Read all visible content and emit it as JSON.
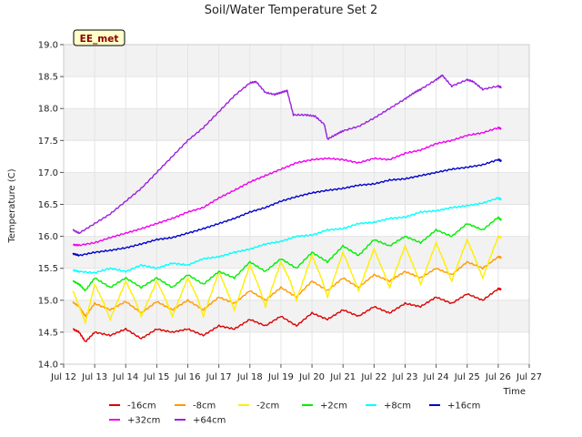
{
  "chart_data": {
    "type": "line",
    "title": "Soil/Water Temperature Set 2",
    "xlabel": "Time",
    "ylabel": "Temperature (C)",
    "badge": "EE_met",
    "xlim": [
      12,
      27
    ],
    "ylim": [
      14.0,
      19.0
    ],
    "x_tick_values": [
      12,
      13,
      14,
      15,
      16,
      17,
      18,
      19,
      20,
      21,
      22,
      23,
      24,
      25,
      26,
      27
    ],
    "x_tick_labels": [
      "Jul 12",
      "Jul 13",
      "Jul 14",
      "Jul 15",
      "Jul 16",
      "Jul 17",
      "Jul 18",
      "Jul 19",
      "Jul 20",
      "Jul 21",
      "Jul 22",
      "Jul 23",
      "Jul 24",
      "Jul 25",
      "Jul 26",
      "Jul 27"
    ],
    "y_tick_values": [
      14.0,
      14.5,
      15.0,
      15.5,
      16.0,
      16.5,
      17.0,
      17.5,
      18.0,
      18.5,
      19.0
    ],
    "y_tick_labels": [
      "14.0",
      "14.5",
      "15.0",
      "15.5",
      "16.0",
      "16.5",
      "17.0",
      "17.5",
      "18.0",
      "18.5",
      "19.0"
    ],
    "grid": true,
    "legend_position": "bottom",
    "series": [
      {
        "name": "-16cm",
        "color": "#dd0000",
        "x": [
          12.3,
          12.5,
          12.7,
          13.0,
          13.5,
          14.0,
          14.5,
          15.0,
          15.5,
          16.0,
          16.5,
          17.0,
          17.5,
          18.0,
          18.5,
          19.0,
          19.5,
          20.0,
          20.5,
          21.0,
          21.5,
          22.0,
          22.5,
          23.0,
          23.5,
          24.0,
          24.5,
          25.0,
          25.5,
          26.0,
          26.1
        ],
        "y": [
          14.55,
          14.5,
          14.35,
          14.5,
          14.45,
          14.55,
          14.4,
          14.55,
          14.5,
          14.55,
          14.45,
          14.6,
          14.55,
          14.7,
          14.6,
          14.75,
          14.6,
          14.8,
          14.7,
          14.85,
          14.75,
          14.9,
          14.8,
          14.95,
          14.9,
          15.05,
          14.95,
          15.1,
          15.0,
          15.18,
          15.17
        ]
      },
      {
        "name": "-8cm",
        "color": "#ff9900",
        "x": [
          12.3,
          12.5,
          12.7,
          13.0,
          13.5,
          14.0,
          14.5,
          15.0,
          15.5,
          16.0,
          16.5,
          17.0,
          17.5,
          18.0,
          18.5,
          19.0,
          19.5,
          20.0,
          20.5,
          21.0,
          21.5,
          22.0,
          22.5,
          23.0,
          23.5,
          24.0,
          24.5,
          25.0,
          25.5,
          26.0,
          26.1
        ],
        "y": [
          14.97,
          14.9,
          14.75,
          14.95,
          14.85,
          14.98,
          14.8,
          14.98,
          14.85,
          15.0,
          14.85,
          15.05,
          14.95,
          15.15,
          15.0,
          15.2,
          15.05,
          15.3,
          15.15,
          15.35,
          15.2,
          15.4,
          15.3,
          15.45,
          15.35,
          15.5,
          15.4,
          15.6,
          15.5,
          15.68,
          15.67
        ]
      },
      {
        "name": "-2cm",
        "color": "#ffee00",
        "x": [
          12.3,
          12.5,
          12.7,
          13.0,
          13.3,
          13.5,
          14.0,
          14.3,
          14.5,
          15.0,
          15.3,
          15.5,
          16.0,
          16.3,
          16.5,
          17.0,
          17.3,
          17.5,
          18.0,
          18.3,
          18.5,
          19.0,
          19.3,
          19.5,
          20.0,
          20.3,
          20.5,
          21.0,
          21.3,
          21.5,
          22.0,
          22.3,
          22.5,
          23.0,
          23.3,
          23.5,
          24.0,
          24.3,
          24.5,
          25.0,
          25.3,
          25.5,
          26.0,
          26.1
        ],
        "y": [
          15.15,
          14.9,
          14.65,
          15.25,
          14.95,
          14.7,
          15.3,
          15.0,
          14.75,
          15.3,
          15.0,
          14.75,
          15.35,
          15.05,
          14.75,
          15.45,
          15.1,
          14.85,
          15.55,
          15.2,
          14.9,
          15.6,
          15.3,
          15.0,
          15.7,
          15.35,
          15.05,
          15.75,
          15.4,
          15.15,
          15.8,
          15.45,
          15.2,
          15.85,
          15.5,
          15.25,
          15.9,
          15.55,
          15.3,
          15.95,
          15.6,
          15.35,
          16.0,
          15.98
        ]
      },
      {
        "name": "+2cm",
        "color": "#00ee00",
        "x": [
          12.3,
          12.5,
          12.7,
          13.0,
          13.5,
          14.0,
          14.5,
          15.0,
          15.5,
          16.0,
          16.5,
          17.0,
          17.5,
          18.0,
          18.5,
          19.0,
          19.5,
          20.0,
          20.5,
          21.0,
          21.5,
          22.0,
          22.5,
          23.0,
          23.5,
          24.0,
          24.5,
          25.0,
          25.5,
          26.0,
          26.1
        ],
        "y": [
          15.3,
          15.25,
          15.15,
          15.35,
          15.2,
          15.35,
          15.2,
          15.35,
          15.2,
          15.4,
          15.25,
          15.45,
          15.35,
          15.6,
          15.45,
          15.65,
          15.5,
          15.75,
          15.6,
          15.85,
          15.7,
          15.95,
          15.85,
          16.0,
          15.9,
          16.1,
          16.0,
          16.2,
          16.1,
          16.3,
          16.25
        ]
      },
      {
        "name": "+8cm",
        "color": "#00ffff",
        "x": [
          12.3,
          12.5,
          13.0,
          13.5,
          14.0,
          14.5,
          15.0,
          15.5,
          16.0,
          16.5,
          17.0,
          17.5,
          18.0,
          18.5,
          19.0,
          19.5,
          20.0,
          20.5,
          21.0,
          21.5,
          22.0,
          22.5,
          23.0,
          23.5,
          24.0,
          24.5,
          25.0,
          25.5,
          26.0,
          26.1
        ],
        "y": [
          15.47,
          15.45,
          15.43,
          15.5,
          15.45,
          15.55,
          15.5,
          15.58,
          15.55,
          15.65,
          15.68,
          15.75,
          15.8,
          15.88,
          15.92,
          16.0,
          16.02,
          16.1,
          16.12,
          16.2,
          16.22,
          16.28,
          16.3,
          16.38,
          16.4,
          16.45,
          16.48,
          16.52,
          16.6,
          16.58
        ]
      },
      {
        "name": "+16cm",
        "color": "#0000cc",
        "x": [
          12.3,
          12.5,
          13.0,
          13.5,
          14.0,
          14.5,
          15.0,
          15.5,
          16.0,
          16.5,
          17.0,
          17.5,
          18.0,
          18.5,
          19.0,
          19.5,
          20.0,
          20.5,
          21.0,
          21.5,
          22.0,
          22.5,
          23.0,
          23.5,
          24.0,
          24.5,
          25.0,
          25.5,
          26.0,
          26.1
        ],
        "y": [
          15.73,
          15.7,
          15.75,
          15.78,
          15.82,
          15.88,
          15.95,
          15.98,
          16.05,
          16.12,
          16.2,
          16.28,
          16.38,
          16.45,
          16.55,
          16.62,
          16.68,
          16.72,
          16.75,
          16.8,
          16.82,
          16.88,
          16.9,
          16.95,
          17.0,
          17.05,
          17.08,
          17.12,
          17.2,
          17.18
        ]
      },
      {
        "name": "+32cm",
        "color": "#ee00ee",
        "x": [
          12.3,
          12.5,
          13.0,
          13.5,
          14.0,
          14.5,
          15.0,
          15.5,
          16.0,
          16.5,
          17.0,
          17.5,
          18.0,
          18.5,
          19.0,
          19.5,
          20.0,
          20.5,
          21.0,
          21.5,
          22.0,
          22.5,
          23.0,
          23.5,
          24.0,
          24.5,
          25.0,
          25.5,
          26.0,
          26.1
        ],
        "y": [
          15.87,
          15.86,
          15.9,
          15.98,
          16.05,
          16.12,
          16.2,
          16.28,
          16.38,
          16.45,
          16.6,
          16.72,
          16.85,
          16.95,
          17.05,
          17.15,
          17.2,
          17.22,
          17.2,
          17.15,
          17.22,
          17.2,
          17.3,
          17.35,
          17.45,
          17.5,
          17.58,
          17.62,
          17.7,
          17.68
        ]
      },
      {
        "name": "+64cm",
        "color": "#9922dd",
        "x": [
          12.3,
          12.5,
          13.0,
          13.5,
          14.0,
          14.5,
          15.0,
          15.5,
          16.0,
          16.5,
          17.0,
          17.5,
          18.0,
          18.2,
          18.5,
          18.8,
          19.0,
          19.2,
          19.4,
          19.8,
          20.1,
          20.4,
          20.5,
          20.8,
          21.0,
          21.5,
          22.0,
          22.5,
          23.0,
          23.3,
          23.5,
          24.0,
          24.2,
          24.5,
          25.0,
          25.2,
          25.5,
          26.0,
          26.1
        ],
        "y": [
          16.1,
          16.05,
          16.2,
          16.35,
          16.55,
          16.75,
          17.0,
          17.25,
          17.5,
          17.7,
          17.95,
          18.2,
          18.4,
          18.42,
          18.25,
          18.22,
          18.25,
          18.28,
          17.9,
          17.9,
          17.88,
          17.75,
          17.52,
          17.6,
          17.65,
          17.72,
          17.85,
          18.0,
          18.15,
          18.25,
          18.3,
          18.45,
          18.52,
          18.35,
          18.45,
          18.42,
          18.3,
          18.35,
          18.33
        ]
      }
    ]
  }
}
